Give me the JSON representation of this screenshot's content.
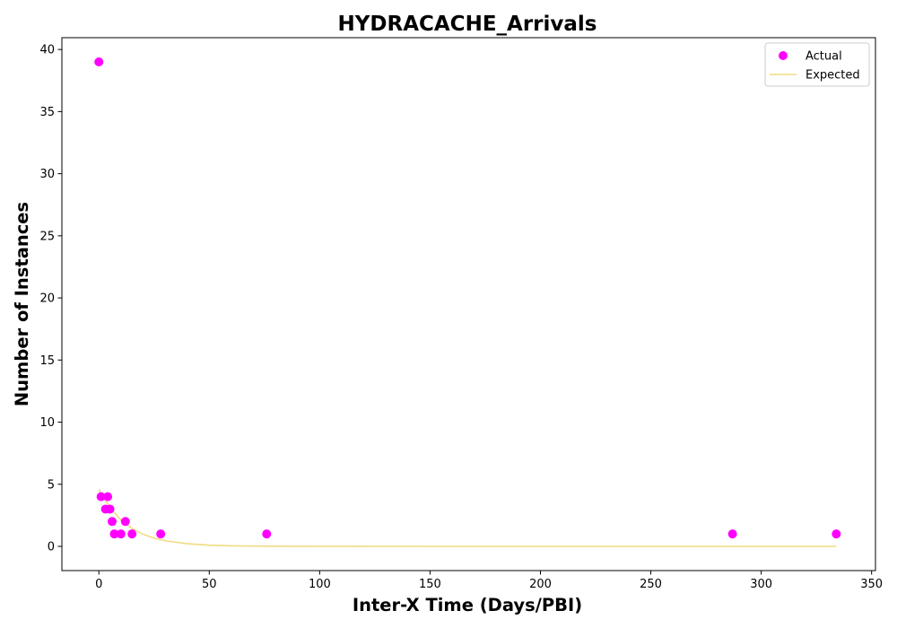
{
  "chart_data": {
    "type": "scatter",
    "title": "HYDRACACHE_Arrivals",
    "xlabel": "Inter-X Time (Days/PBI)",
    "ylabel": "Number of Instances",
    "xlim": [
      -16.75,
      351.75
    ],
    "ylim": [
      -1.95,
      40.95
    ],
    "xticks": [
      0,
      50,
      100,
      150,
      200,
      250,
      300,
      350
    ],
    "yticks": [
      0,
      5,
      10,
      15,
      20,
      25,
      30,
      35,
      40
    ],
    "grid": false,
    "legend_position": "top-right",
    "series": [
      {
        "name": "Actual",
        "kind": "scatter",
        "color": "#ff00ff",
        "points": [
          [
            0,
            39
          ],
          [
            1,
            4
          ],
          [
            3,
            3
          ],
          [
            4,
            4
          ],
          [
            5,
            3
          ],
          [
            6,
            2
          ],
          [
            7,
            1
          ],
          [
            10,
            1
          ],
          [
            12,
            2
          ],
          [
            15,
            1
          ],
          [
            28,
            1
          ],
          [
            76,
            1
          ],
          [
            287,
            1
          ],
          [
            334,
            1
          ]
        ]
      },
      {
        "name": "Expected",
        "kind": "line",
        "color": "#f0dc82",
        "points": [
          [
            0,
            4.6
          ],
          [
            5,
            3.13
          ],
          [
            10,
            2.12
          ],
          [
            15,
            1.44
          ],
          [
            20,
            0.98
          ],
          [
            25,
            0.66
          ],
          [
            30,
            0.45
          ],
          [
            40,
            0.21
          ],
          [
            50,
            0.096
          ],
          [
            60,
            0.044
          ],
          [
            75,
            0.014
          ],
          [
            100,
            0.002
          ],
          [
            150,
            0
          ],
          [
            200,
            0
          ],
          [
            250,
            0
          ],
          [
            300,
            0
          ],
          [
            334,
            0
          ]
        ]
      }
    ]
  }
}
